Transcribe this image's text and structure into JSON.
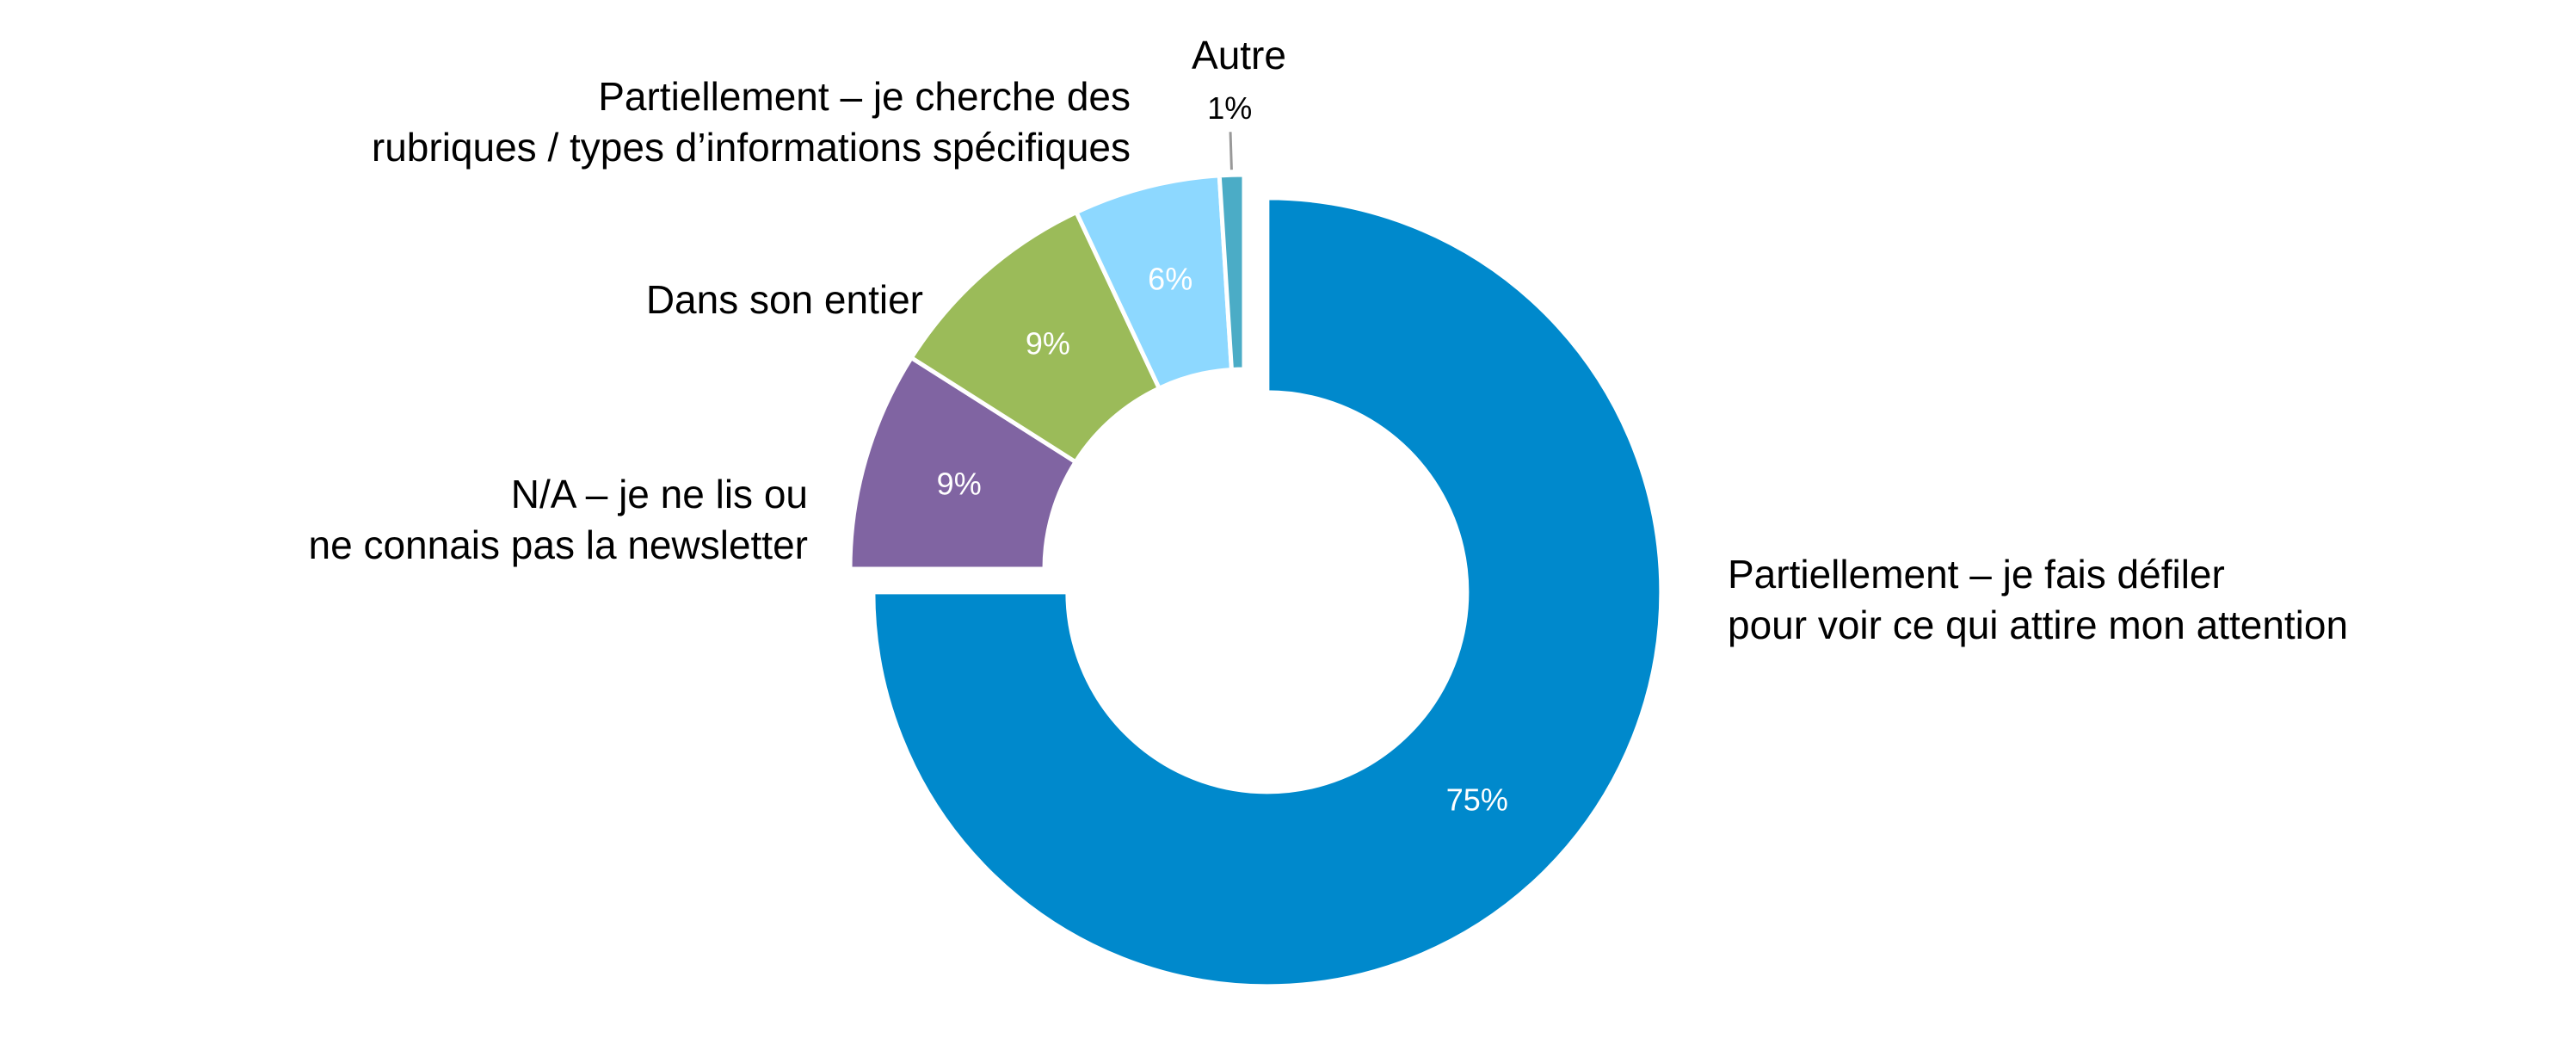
{
  "chart_data": {
    "type": "donut",
    "categories": [
      "Partiellement – je fais défiler\npour voir ce qui attire mon attention",
      "N/A – je ne lis ou\nne connais pas la newsletter",
      "Dans son entier",
      "Partiellement – je cherche des\nrubriques / types d’informations spécifiques",
      "Autre"
    ],
    "values": [
      75,
      9,
      9,
      6,
      1
    ],
    "value_labels": [
      "75%",
      "9%",
      "9%",
      "6%",
      "1%"
    ],
    "colors": [
      "#0089cc",
      "#8064a2",
      "#9bbb59",
      "#8dd8ff",
      "#4bacc6"
    ]
  }
}
